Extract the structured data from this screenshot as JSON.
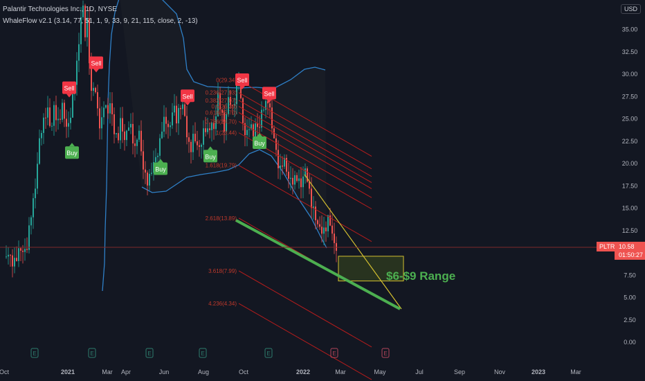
{
  "header": {
    "title": "Palantir Technologies Inc., 1D, NYSE",
    "indicator": "WhaleFlow v2.1 (3.14, 77, 51, 1, 9, 33, 9, 21, 115, close, 2, -13)"
  },
  "price_panel": {
    "currency": "USD",
    "ticker": "PLTR",
    "last_price": "10.58",
    "countdown": "01:50:27"
  },
  "colors": {
    "background": "#131722",
    "up_candle": "#26a69a",
    "down_candle": "#ef5350",
    "band": "#2f80c8",
    "fib_line": "#b71c1c",
    "green_trend": "#4caf50",
    "yellow_line": "#d4c030",
    "sell_badge": "#f23645",
    "buy_badge": "#4caf50"
  },
  "chart_data": {
    "type": "candlestick",
    "title": "Palantir Technologies Inc., 1D, NYSE",
    "y_ticks": [
      "35.00",
      "32.50",
      "30.00",
      "27.50",
      "25.00",
      "22.50",
      "20.00",
      "17.50",
      "15.00",
      "12.50",
      "10.00",
      "7.50",
      "5.00",
      "2.50",
      "0.00"
    ],
    "ylim": [
      -1,
      38.5
    ],
    "x_ticks": [
      "Oct",
      "2021",
      "Mar",
      "Apr",
      "Jun",
      "Aug",
      "Oct",
      "2022",
      "Mar",
      "May",
      "Jul",
      "Sep",
      "Nov",
      "2023",
      "Mar"
    ],
    "price_path": [
      [
        0,
        10
      ],
      [
        7,
        9.6
      ],
      [
        16,
        9.2
      ],
      [
        26,
        9.6
      ],
      [
        34,
        10.5
      ],
      [
        40,
        11
      ],
      [
        45,
        14
      ],
      [
        50,
        17
      ],
      [
        56,
        22
      ],
      [
        62,
        24
      ],
      [
        68,
        27
      ],
      [
        74,
        23
      ],
      [
        78,
        26
      ],
      [
        84,
        25
      ],
      [
        90,
        26
      ],
      [
        95,
        24
      ],
      [
        100,
        25
      ],
      [
        105,
        27
      ],
      [
        110,
        30
      ],
      [
        115,
        35
      ],
      [
        119,
        38.5
      ],
      [
        123,
        34
      ],
      [
        127,
        36
      ],
      [
        131,
        28
      ],
      [
        136,
        29
      ],
      [
        140,
        26
      ],
      [
        145,
        24
      ],
      [
        150,
        27
      ],
      [
        155,
        25
      ],
      [
        160,
        27
      ],
      [
        165,
        24
      ],
      [
        170,
        22
      ],
      [
        175,
        25
      ],
      [
        180,
        23
      ],
      [
        185,
        24
      ],
      [
        190,
        23.5
      ],
      [
        195,
        22
      ],
      [
        200,
        24
      ],
      [
        205,
        20
      ],
      [
        210,
        19
      ],
      [
        215,
        18
      ],
      [
        220,
        19
      ],
      [
        225,
        21
      ],
      [
        230,
        22
      ],
      [
        235,
        24
      ],
      [
        240,
        25
      ],
      [
        245,
        24
      ],
      [
        250,
        26
      ],
      [
        255,
        25
      ],
      [
        260,
        27
      ],
      [
        265,
        26
      ],
      [
        270,
        23
      ],
      [
        275,
        22
      ],
      [
        280,
        23
      ],
      [
        285,
        21.5
      ],
      [
        290,
        22.5
      ],
      [
        295,
        24
      ],
      [
        300,
        23
      ],
      [
        305,
        25
      ],
      [
        310,
        24
      ],
      [
        315,
        27
      ],
      [
        320,
        26
      ],
      [
        325,
        24
      ],
      [
        330,
        27
      ],
      [
        335,
        26
      ],
      [
        340,
        28
      ],
      [
        345,
        29
      ],
      [
        350,
        25
      ],
      [
        355,
        23.5
      ],
      [
        360,
        24
      ],
      [
        365,
        23
      ],
      [
        370,
        25
      ],
      [
        375,
        24
      ],
      [
        380,
        26
      ],
      [
        385,
        27
      ],
      [
        388,
        28
      ],
      [
        392,
        24
      ],
      [
        396,
        22.5
      ],
      [
        400,
        21
      ],
      [
        405,
        19.5
      ],
      [
        410,
        20
      ],
      [
        415,
        19
      ],
      [
        420,
        18.5
      ],
      [
        425,
        17.5
      ],
      [
        430,
        18.5
      ],
      [
        435,
        18
      ],
      [
        440,
        19
      ],
      [
        444,
        18
      ],
      [
        448,
        16.5
      ],
      [
        452,
        15.5
      ],
      [
        456,
        13.5
      ],
      [
        460,
        12.5
      ],
      [
        465,
        13
      ],
      [
        470,
        12.5
      ],
      [
        475,
        13.5
      ],
      [
        480,
        12.5
      ],
      [
        485,
        10.58
      ]
    ],
    "signals": [
      {
        "type": "Sell",
        "x": 100,
        "price": 28.4
      },
      {
        "type": "Sell",
        "x": 139,
        "price": 31.2
      },
      {
        "type": "Sell",
        "x": 271,
        "price": 27.5
      },
      {
        "type": "Sell",
        "x": 350,
        "price": 29.3
      },
      {
        "type": "Sell",
        "x": 389,
        "price": 27.8
      },
      {
        "type": "Buy",
        "x": 104,
        "price": 21.3
      },
      {
        "type": "Buy",
        "x": 232,
        "price": 19.5
      },
      {
        "type": "Buy",
        "x": 304,
        "price": 20.9
      },
      {
        "type": "Buy",
        "x": 375,
        "price": 22.4
      }
    ],
    "fib_levels": [
      {
        "label": "0(29.34)",
        "value": 29.34
      },
      {
        "label": "0.236(27.93)",
        "value": 27.93
      },
      {
        "label": "0.382(27.07)",
        "value": 27.07
      },
      {
        "label": "0.5(26.39)",
        "value": 26.39
      },
      {
        "label": "0.618(25.70)",
        "value": 25.7
      },
      {
        "label": "0.786(24.70)",
        "value": 24.7
      },
      {
        "label": "1(23.44)",
        "value": 23.44
      },
      {
        "label": "1.618(19.79)",
        "value": 19.79
      },
      {
        "label": "2.618(13.89)",
        "value": 13.89
      },
      {
        "label": "3.618(7.99)",
        "value": 7.99
      },
      {
        "label": "4.236(4.34)",
        "value": 4.34
      }
    ],
    "annotation": "$6-$9 Range",
    "range_box": [
      6,
      9
    ]
  }
}
